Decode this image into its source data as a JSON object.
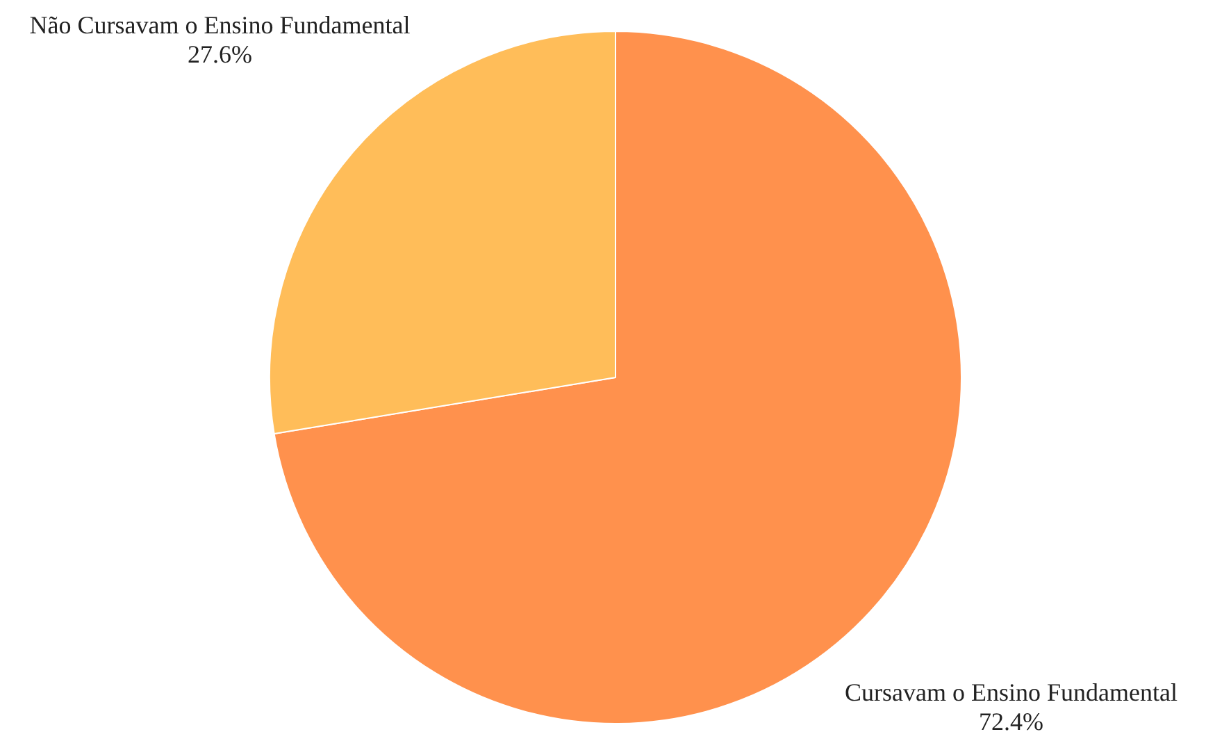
{
  "chart_data": {
    "type": "pie",
    "categories": [
      "Cursavam o Ensino Fundamental",
      "Não Cursavam o Ensino Fundamental"
    ],
    "values": [
      72.4,
      27.6
    ],
    "colors": [
      "#ff914d",
      "#ffbd59"
    ],
    "value_labels": [
      "72.4%",
      "27.6%"
    ],
    "legend": false
  }
}
